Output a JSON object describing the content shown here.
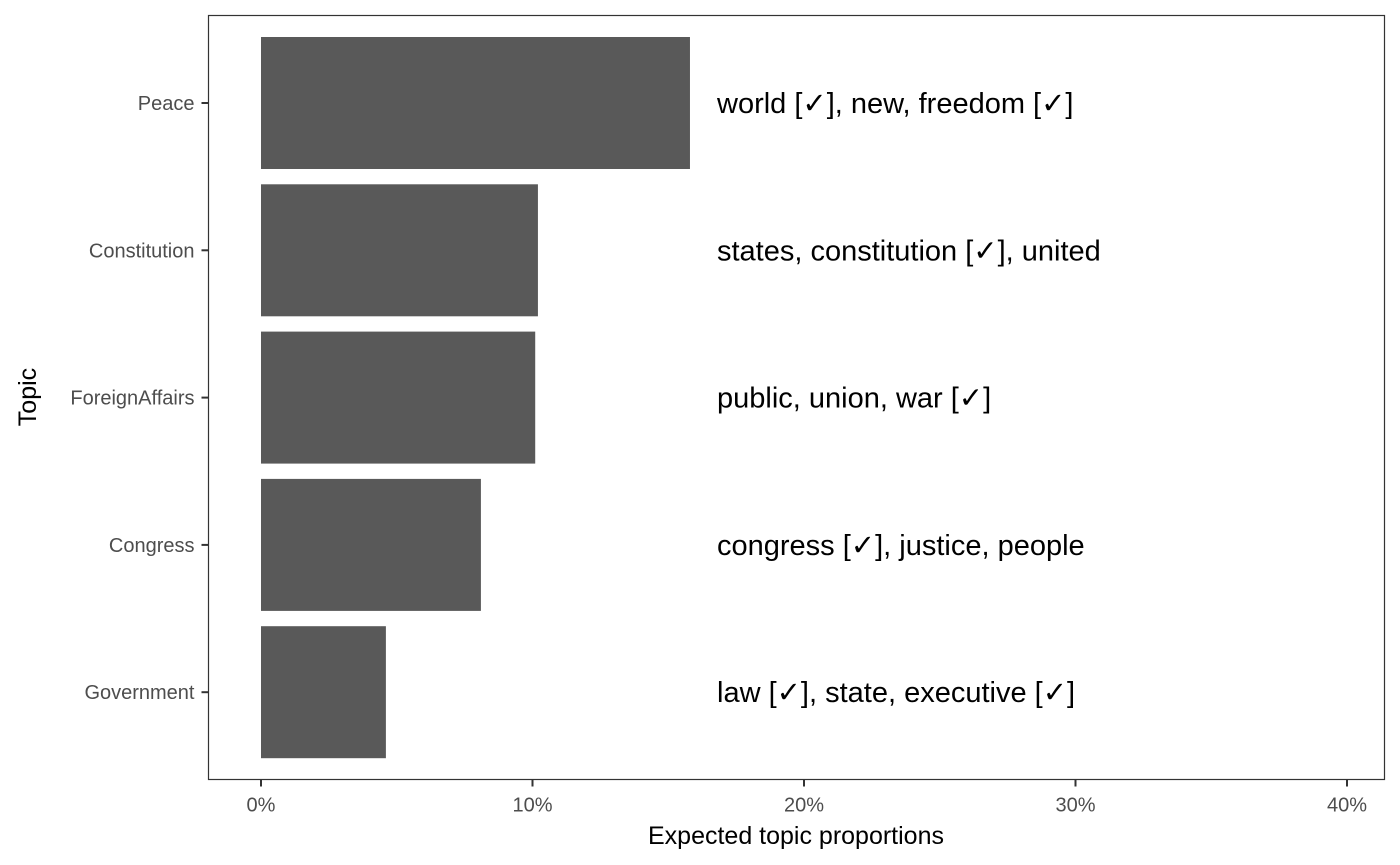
{
  "chart_data": {
    "type": "bar",
    "orientation": "horizontal",
    "xlabel": "Expected topic proportions",
    "ylabel": "Topic",
    "xlim": [
      0,
      0.4
    ],
    "x_ticks": [
      0,
      0.1,
      0.2,
      0.3,
      0.4
    ],
    "x_tick_labels": [
      "0%",
      "10%",
      "20%",
      "30%",
      "40%"
    ],
    "categories": [
      "Peace",
      "Constitution",
      "ForeignAffairs",
      "Congress",
      "Government"
    ],
    "values": [
      0.158,
      0.102,
      0.101,
      0.081,
      0.046
    ],
    "annotations": [
      "world [✓], new, freedom [✓]",
      "states, constitution [✓], united",
      "public, union, war [✓]",
      "congress [✓], justice, people",
      "law [✓], state, executive [✓]"
    ],
    "grid": false,
    "legend": "none",
    "colors": {
      "bar": "#595959",
      "panel_border": "#333333",
      "tick": "#333333",
      "tick_label": "#4d4d4d",
      "text": "#000000",
      "background": "#ffffff"
    }
  }
}
